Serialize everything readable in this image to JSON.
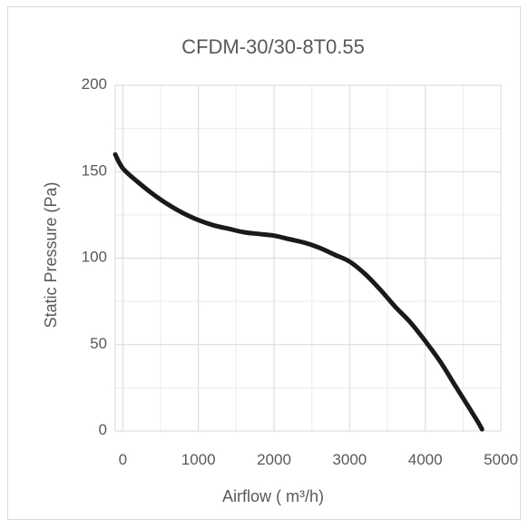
{
  "chart_data": {
    "type": "line",
    "title": "CFDM-30/30-8T0.55",
    "xlabel": "Airflow ( m³/h)",
    "ylabel": "Static Pressure (Pa)",
    "xlim": [
      -100,
      5000
    ],
    "ylim": [
      0,
      200
    ],
    "x_ticks": [
      0,
      1000,
      2000,
      3000,
      4000,
      5000
    ],
    "x_tick_labels": [
      "0",
      "1000",
      "2000",
      "3000",
      "4000",
      "5000"
    ],
    "y_ticks": [
      0,
      50,
      100,
      150,
      200
    ],
    "y_tick_labels": [
      "0",
      "50",
      "100",
      "150",
      "200"
    ],
    "grid": true,
    "legend": "none",
    "series": [
      {
        "color": "#1a1a1a",
        "x": [
          -100,
          0,
          200,
          400,
          600,
          800,
          1000,
          1200,
          1400,
          1600,
          1800,
          2000,
          2200,
          2400,
          2600,
          2800,
          3000,
          3200,
          3400,
          3600,
          3800,
          4000,
          4200,
          4400,
          4600,
          4700,
          4750
        ],
        "y": [
          160,
          152,
          144,
          137,
          131,
          126,
          122,
          119,
          117,
          115,
          114,
          113,
          111,
          109,
          106,
          102,
          98,
          91,
          82,
          72,
          63,
          52,
          40,
          26,
          12,
          5,
          1
        ]
      }
    ]
  }
}
